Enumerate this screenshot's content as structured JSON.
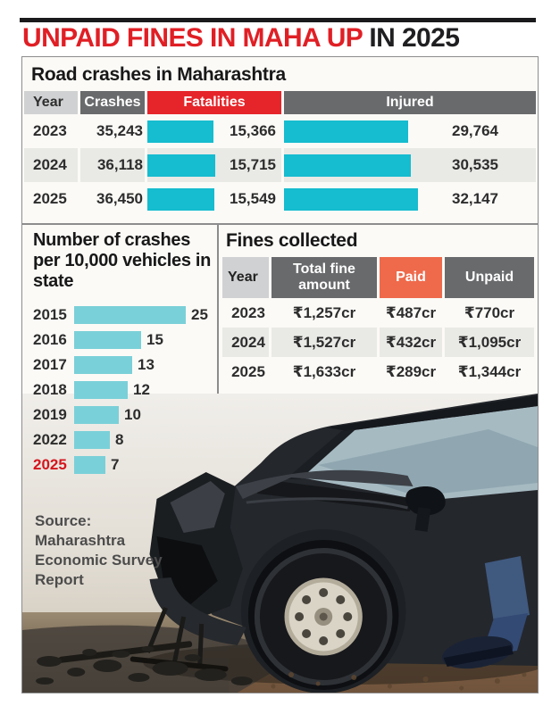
{
  "title": {
    "red_part": "UNPAID FINES IN MAHA UP",
    "black_part": "IN 2025"
  },
  "road_crashes": {
    "heading": "Road crashes in Maharashtra",
    "columns": [
      "Year",
      "Crashes",
      "Fatalities",
      "Injured"
    ],
    "rows": [
      {
        "year": "2023",
        "crashes": "35,243",
        "fatalities": 15366,
        "fatalities_label": "15,366",
        "injured": 29764,
        "injured_label": "29,764"
      },
      {
        "year": "2024",
        "crashes": "36,118",
        "fatalities": 15715,
        "fatalities_label": "15,715",
        "injured": 30535,
        "injured_label": "30,535"
      },
      {
        "year": "2025",
        "crashes": "36,450",
        "fatalities": 15549,
        "fatalities_label": "15,549",
        "injured": 32147,
        "injured_label": "32,147"
      }
    ]
  },
  "crashes_per_10k": {
    "heading": "Number of crashes per 10,000 vehicles in state",
    "rows": [
      {
        "year": "2015",
        "value": 25,
        "highlight": false
      },
      {
        "year": "2016",
        "value": 15,
        "highlight": false
      },
      {
        "year": "2017",
        "value": 13,
        "highlight": false
      },
      {
        "year": "2018",
        "value": 12,
        "highlight": false
      },
      {
        "year": "2019",
        "value": 10,
        "highlight": false
      },
      {
        "year": "2022",
        "value": 8,
        "highlight": false
      },
      {
        "year": "2025",
        "value": 7,
        "highlight": true
      }
    ]
  },
  "fines": {
    "heading": "Fines collected",
    "columns": [
      "Year",
      "Total fine amount",
      "Paid",
      "Unpaid"
    ],
    "rows": [
      {
        "year": "2023",
        "total": "₹1,257cr",
        "paid": "₹487cr",
        "unpaid": "₹770cr"
      },
      {
        "year": "2024",
        "total": "₹1,527cr",
        "paid": "₹432cr",
        "unpaid": "₹1,095cr"
      },
      {
        "year": "2025",
        "total": "₹1,633cr",
        "paid": "₹289cr",
        "unpaid": "₹1,344cr"
      }
    ]
  },
  "source": "Source: Maharashtra Economic Survey Report",
  "colors": {
    "accent_red": "#e01f25",
    "header_dark_gray": "#696a6c",
    "header_light_gray": "#d0d1d2",
    "paid_orange": "#ee6a4b",
    "bar_cyan": "#16bccf",
    "bar_light_cyan": "#7ad0d8",
    "alt_row": "#e9e9e6"
  },
  "chart_data": [
    {
      "type": "table",
      "title": "Road crashes in Maharashtra",
      "columns": [
        "Year",
        "Crashes",
        "Fatalities",
        "Injured"
      ],
      "rows": [
        [
          "2023",
          35243,
          15366,
          29764
        ],
        [
          "2024",
          36118,
          15715,
          30535
        ],
        [
          "2025",
          36450,
          15549,
          32147
        ]
      ],
      "note": "Fatalities and Injured columns are shown with horizontal cyan bars proportional to value"
    },
    {
      "type": "bar",
      "title": "Number of crashes per 10,000 vehicles in state",
      "orientation": "horizontal",
      "categories": [
        "2015",
        "2016",
        "2017",
        "2018",
        "2019",
        "2022",
        "2025"
      ],
      "values": [
        25,
        15,
        13,
        12,
        10,
        8,
        7
      ],
      "xlabel": "",
      "ylabel": "",
      "xlim": [
        0,
        25
      ],
      "grid": false,
      "legend": false,
      "highlight_category": "2025"
    },
    {
      "type": "table",
      "title": "Fines collected",
      "columns": [
        "Year",
        "Total fine amount",
        "Paid",
        "Unpaid"
      ],
      "rows": [
        [
          "2023",
          "₹1,257cr",
          "₹487cr",
          "₹770cr"
        ],
        [
          "2024",
          "₹1,527cr",
          "₹432cr",
          "₹1,095cr"
        ],
        [
          "2025",
          "₹1,633cr",
          "₹289cr",
          "₹1,344cr"
        ]
      ]
    }
  ]
}
